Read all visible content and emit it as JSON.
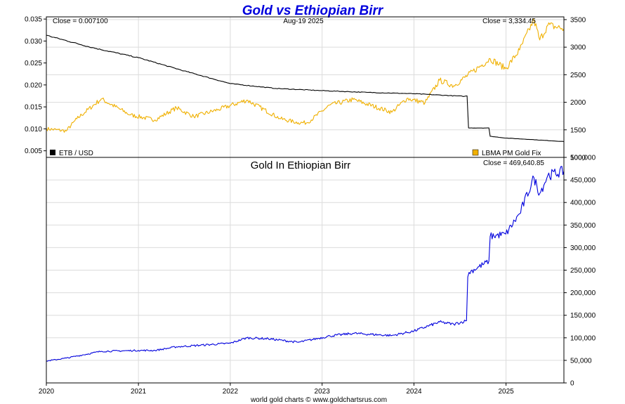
{
  "title": "Gold vs Ethiopian Birr",
  "footer": "world gold charts © www.goldchartsrus.com",
  "chart_data": [
    {
      "type": "line",
      "panel": "top",
      "date_label": "Aug-19  2025",
      "close_left": "Close = 0.007100",
      "close_right": "Close = 3,334.45",
      "x_ticks": [
        "2020",
        "2021",
        "2022",
        "2023",
        "2024",
        "2025"
      ],
      "x_range": [
        "2020-01-01",
        "2025-08-19"
      ],
      "y_left": {
        "range": [
          0.0035,
          0.0355
        ],
        "ticks": [
          "0.005",
          "0.010",
          "0.015",
          "0.020",
          "0.025",
          "0.030",
          "0.035"
        ]
      },
      "y_right": {
        "range": [
          1000,
          3550
        ],
        "ticks": [
          "1000",
          "1500",
          "2000",
          "2500",
          "3000",
          "3500"
        ]
      },
      "grid": true,
      "legend": [
        {
          "label": "ETB / USD",
          "color": "#000000",
          "position": "bottom-left"
        },
        {
          "label": "LBMA PM Gold Fix",
          "color": "#f0b000",
          "position": "bottom-right"
        }
      ],
      "series": [
        {
          "name": "ETB / USD",
          "axis": "left",
          "color": "#000000",
          "points": [
            [
              "2020-01-01",
              0.0313
            ],
            [
              "2020-07-01",
              0.0285
            ],
            [
              "2021-01-01",
              0.0262
            ],
            [
              "2021-07-01",
              0.0232
            ],
            [
              "2022-01-01",
              0.0203
            ],
            [
              "2022-07-01",
              0.0192
            ],
            [
              "2023-01-01",
              0.0187
            ],
            [
              "2023-07-01",
              0.0183
            ],
            [
              "2024-01-01",
              0.018
            ],
            [
              "2024-07-20",
              0.0174
            ],
            [
              "2024-07-30",
              0.0175
            ],
            [
              "2024-08-05",
              0.0102
            ],
            [
              "2024-10-25",
              0.0102
            ],
            [
              "2024-10-30",
              0.0083
            ],
            [
              "2025-01-01",
              0.0079
            ],
            [
              "2025-04-01",
              0.0076
            ],
            [
              "2025-08-19",
              0.0071
            ]
          ]
        },
        {
          "name": "LBMA PM Gold Fix",
          "axis": "right",
          "color": "#f0b000",
          "points": [
            [
              "2020-01-01",
              1520
            ],
            [
              "2020-03-20",
              1480
            ],
            [
              "2020-05-01",
              1700
            ],
            [
              "2020-08-06",
              2060
            ],
            [
              "2020-11-30",
              1770
            ],
            [
              "2021-03-08",
              1680
            ],
            [
              "2021-06-01",
              1900
            ],
            [
              "2021-08-09",
              1740
            ],
            [
              "2021-11-16",
              1870
            ],
            [
              "2022-03-08",
              2040
            ],
            [
              "2022-07-20",
              1700
            ],
            [
              "2022-09-28",
              1630
            ],
            [
              "2022-11-03",
              1630
            ],
            [
              "2023-02-01",
              1950
            ],
            [
              "2023-05-04",
              2050
            ],
            [
              "2023-10-05",
              1820
            ],
            [
              "2023-12-04",
              2070
            ],
            [
              "2024-02-14",
              1990
            ],
            [
              "2024-04-12",
              2400
            ],
            [
              "2024-06-07",
              2300
            ],
            [
              "2024-10-30",
              2790
            ],
            [
              "2024-12-31",
              2610
            ],
            [
              "2025-02-24",
              2950
            ],
            [
              "2025-04-22",
              3500
            ],
            [
              "2025-05-15",
              3130
            ],
            [
              "2025-06-16",
              3400
            ],
            [
              "2025-08-19",
              3334
            ]
          ]
        }
      ]
    },
    {
      "type": "line",
      "panel": "bottom",
      "title": "Gold In Ethiopian Birr",
      "close_right": "Close = 469,640.85",
      "x_ticks": [
        "2020",
        "2021",
        "2022",
        "2023",
        "2024",
        "2025"
      ],
      "x_range": [
        "2020-01-01",
        "2025-08-19"
      ],
      "y_right": {
        "range": [
          0,
          500000
        ],
        "ticks": [
          "0",
          "50,000",
          "100,000",
          "150,000",
          "200,000",
          "250,000",
          "300,000",
          "350,000",
          "400,000",
          "450,000",
          "500,000"
        ]
      },
      "grid": true,
      "series": [
        {
          "name": "Gold In Ethiopian Birr",
          "axis": "right",
          "color": "#0000dd",
          "points": [
            [
              "2020-01-01",
              48500
            ],
            [
              "2020-03-20",
              55000
            ],
            [
              "2020-08-06",
              70000
            ],
            [
              "2021-01-01",
              72000
            ],
            [
              "2021-03-08",
              72000
            ],
            [
              "2021-06-01",
              80000
            ],
            [
              "2022-01-01",
              88000
            ],
            [
              "2022-03-08",
              100000
            ],
            [
              "2022-06-01",
              98000
            ],
            [
              "2022-09-28",
              90000
            ],
            [
              "2023-02-01",
              104000
            ],
            [
              "2023-05-04",
              110000
            ],
            [
              "2023-10-05",
              105000
            ],
            [
              "2024-01-01",
              115000
            ],
            [
              "2024-04-12",
              135000
            ],
            [
              "2024-06-07",
              130000
            ],
            [
              "2024-07-28",
              138000
            ],
            [
              "2024-08-02",
              235000
            ],
            [
              "2024-08-07",
              245000
            ],
            [
              "2024-10-25",
              270000
            ],
            [
              "2024-10-30",
              325000
            ],
            [
              "2024-12-31",
              330000
            ],
            [
              "2025-02-24",
              375000
            ],
            [
              "2025-04-22",
              455000
            ],
            [
              "2025-05-15",
              420000
            ],
            [
              "2025-06-16",
              460000
            ],
            [
              "2025-08-19",
              469641
            ]
          ]
        }
      ]
    }
  ]
}
